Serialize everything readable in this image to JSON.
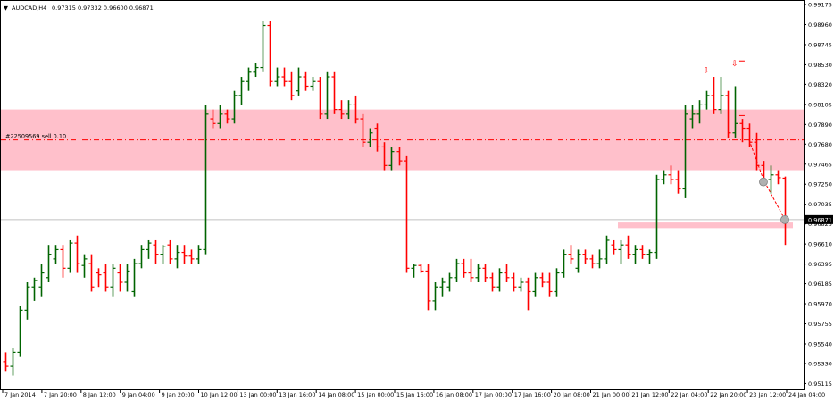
{
  "header": {
    "symbol": "AUDCAD,H4",
    "ohlc": "0.97315 0.97332 0.96600 0.96871"
  },
  "order_label": "#22509569 sell 0.10",
  "current_price_label": "0.96871",
  "colors": {
    "bull": "#006400",
    "bear": "#ff0000",
    "zone": "#ffc0cb",
    "order_line": "#ff0000",
    "price_line": "#c0c0c0",
    "price_tag_bg": "#000000"
  },
  "chart_data": {
    "type": "candlestick",
    "title": "AUDCAD,H4",
    "ylim": [
      0.951,
      0.99175
    ],
    "y_ticks": [
      "0.99175",
      "0.98960",
      "0.98745",
      "0.98530",
      "0.98320",
      "0.98105",
      "0.97890",
      "0.97680",
      "0.97465",
      "0.97250",
      "0.97035",
      "0.96825",
      "0.96610",
      "0.96395",
      "0.96185",
      "0.95970",
      "0.95755",
      "0.95540",
      "0.95330",
      "0.95115"
    ],
    "x_tick_labels": [
      "7 Jan 2014",
      "7 Jan 20:00",
      "8 Jan 12:00",
      "9 Jan 04:00",
      "9 Jan 20:00",
      "10 Jan 12:00",
      "13 Jan 00:00",
      "13 Jan 16:00",
      "14 Jan 08:00",
      "15 Jan 00:00",
      "15 Jan 16:00",
      "16 Jan 08:00",
      "17 Jan 00:00",
      "17 Jan 16:00",
      "20 Jan 08:00",
      "21 Jan 00:00",
      "21 Jan 12:00",
      "22 Jan 04:00",
      "22 Jan 20:00",
      "23 Jan 12:00",
      "24 Jan 04:00"
    ],
    "bars": [
      {
        "o": 0.9535,
        "h": 0.9545,
        "l": 0.9525,
        "c": 0.953
      },
      {
        "o": 0.953,
        "h": 0.955,
        "l": 0.952,
        "c": 0.9545
      },
      {
        "o": 0.9545,
        "h": 0.9595,
        "l": 0.954,
        "c": 0.959
      },
      {
        "o": 0.959,
        "h": 0.962,
        "l": 0.958,
        "c": 0.9615
      },
      {
        "o": 0.9615,
        "h": 0.9625,
        "l": 0.96,
        "c": 0.9622
      },
      {
        "o": 0.9615,
        "h": 0.964,
        "l": 0.9605,
        "c": 0.963
      },
      {
        "o": 0.9625,
        "h": 0.966,
        "l": 0.962,
        "c": 0.965
      },
      {
        "o": 0.9645,
        "h": 0.966,
        "l": 0.964,
        "c": 0.9655
      },
      {
        "o": 0.9655,
        "h": 0.966,
        "l": 0.9625,
        "c": 0.9635
      },
      {
        "o": 0.9635,
        "h": 0.9665,
        "l": 0.963,
        "c": 0.9662
      },
      {
        "o": 0.9662,
        "h": 0.967,
        "l": 0.963,
        "c": 0.964
      },
      {
        "o": 0.9638,
        "h": 0.965,
        "l": 0.9625,
        "c": 0.9645
      },
      {
        "o": 0.964,
        "h": 0.965,
        "l": 0.961,
        "c": 0.9615
      },
      {
        "o": 0.963,
        "h": 0.9635,
        "l": 0.9615,
        "c": 0.9628
      },
      {
        "o": 0.963,
        "h": 0.964,
        "l": 0.961,
        "c": 0.9615
      },
      {
        "o": 0.9615,
        "h": 0.964,
        "l": 0.9605,
        "c": 0.9635
      },
      {
        "o": 0.963,
        "h": 0.964,
        "l": 0.961,
        "c": 0.962
      },
      {
        "o": 0.962,
        "h": 0.964,
        "l": 0.961,
        "c": 0.9632
      },
      {
        "o": 0.961,
        "h": 0.9645,
        "l": 0.9605,
        "c": 0.964
      },
      {
        "o": 0.964,
        "h": 0.966,
        "l": 0.9635,
        "c": 0.9655
      },
      {
        "o": 0.9655,
        "h": 0.9665,
        "l": 0.9645,
        "c": 0.9662
      },
      {
        "o": 0.966,
        "h": 0.9665,
        "l": 0.964,
        "c": 0.965
      },
      {
        "o": 0.965,
        "h": 0.966,
        "l": 0.964,
        "c": 0.9658
      },
      {
        "o": 0.966,
        "h": 0.9665,
        "l": 0.964,
        "c": 0.9645
      },
      {
        "o": 0.9645,
        "h": 0.966,
        "l": 0.9635,
        "c": 0.9652
      },
      {
        "o": 0.9652,
        "h": 0.966,
        "l": 0.964,
        "c": 0.9648
      },
      {
        "o": 0.9648,
        "h": 0.9655,
        "l": 0.964,
        "c": 0.9645
      },
      {
        "o": 0.9645,
        "h": 0.966,
        "l": 0.964,
        "c": 0.9655
      },
      {
        "o": 0.9655,
        "h": 0.981,
        "l": 0.965,
        "c": 0.98
      },
      {
        "o": 0.9795,
        "h": 0.9805,
        "l": 0.9785,
        "c": 0.979
      },
      {
        "o": 0.979,
        "h": 0.981,
        "l": 0.9785,
        "c": 0.98
      },
      {
        "o": 0.98,
        "h": 0.9805,
        "l": 0.979,
        "c": 0.9795
      },
      {
        "o": 0.9795,
        "h": 0.9825,
        "l": 0.979,
        "c": 0.982
      },
      {
        "o": 0.982,
        "h": 0.984,
        "l": 0.981,
        "c": 0.9835
      },
      {
        "o": 0.9835,
        "h": 0.985,
        "l": 0.9825,
        "c": 0.9845
      },
      {
        "o": 0.9845,
        "h": 0.9855,
        "l": 0.984,
        "c": 0.985
      },
      {
        "o": 0.985,
        "h": 0.99,
        "l": 0.9845,
        "c": 0.9895
      },
      {
        "o": 0.9895,
        "h": 0.99,
        "l": 0.983,
        "c": 0.9835
      },
      {
        "o": 0.9835,
        "h": 0.985,
        "l": 0.983,
        "c": 0.984
      },
      {
        "o": 0.984,
        "h": 0.985,
        "l": 0.983,
        "c": 0.9835
      },
      {
        "o": 0.9835,
        "h": 0.9845,
        "l": 0.9815,
        "c": 0.982
      },
      {
        "o": 0.9825,
        "h": 0.985,
        "l": 0.982,
        "c": 0.984
      },
      {
        "o": 0.984,
        "h": 0.9845,
        "l": 0.9825,
        "c": 0.983
      },
      {
        "o": 0.983,
        "h": 0.984,
        "l": 0.9825,
        "c": 0.9835
      },
      {
        "o": 0.9835,
        "h": 0.984,
        "l": 0.9795,
        "c": 0.98
      },
      {
        "o": 0.98,
        "h": 0.9845,
        "l": 0.9795,
        "c": 0.984
      },
      {
        "o": 0.984,
        "h": 0.9845,
        "l": 0.98,
        "c": 0.9805
      },
      {
        "o": 0.9805,
        "h": 0.9815,
        "l": 0.9795,
        "c": 0.98
      },
      {
        "o": 0.98,
        "h": 0.9815,
        "l": 0.9795,
        "c": 0.981
      },
      {
        "o": 0.981,
        "h": 0.982,
        "l": 0.979,
        "c": 0.9795
      },
      {
        "o": 0.9795,
        "h": 0.98,
        "l": 0.9765,
        "c": 0.977
      },
      {
        "o": 0.977,
        "h": 0.9785,
        "l": 0.9765,
        "c": 0.978
      },
      {
        "o": 0.9785,
        "h": 0.979,
        "l": 0.976,
        "c": 0.9765
      },
      {
        "o": 0.9765,
        "h": 0.977,
        "l": 0.974,
        "c": 0.9745
      },
      {
        "o": 0.9745,
        "h": 0.9765,
        "l": 0.974,
        "c": 0.976
      },
      {
        "o": 0.976,
        "h": 0.9765,
        "l": 0.9745,
        "c": 0.975
      },
      {
        "o": 0.975,
        "h": 0.9755,
        "l": 0.963,
        "c": 0.9635
      },
      {
        "o": 0.9635,
        "h": 0.964,
        "l": 0.9625,
        "c": 0.9638
      },
      {
        "o": 0.9638,
        "h": 0.964,
        "l": 0.963,
        "c": 0.9632
      },
      {
        "o": 0.9632,
        "h": 0.964,
        "l": 0.959,
        "c": 0.96
      },
      {
        "o": 0.96,
        "h": 0.962,
        "l": 0.959,
        "c": 0.9615
      },
      {
        "o": 0.9615,
        "h": 0.9625,
        "l": 0.9605,
        "c": 0.962
      },
      {
        "o": 0.9615,
        "h": 0.963,
        "l": 0.961,
        "c": 0.9625
      },
      {
        "o": 0.9625,
        "h": 0.9645,
        "l": 0.962,
        "c": 0.964
      },
      {
        "o": 0.964,
        "h": 0.9645,
        "l": 0.9625,
        "c": 0.963
      },
      {
        "o": 0.963,
        "h": 0.9645,
        "l": 0.962,
        "c": 0.9625
      },
      {
        "o": 0.9625,
        "h": 0.964,
        "l": 0.962,
        "c": 0.9635
      },
      {
        "o": 0.9635,
        "h": 0.964,
        "l": 0.962,
        "c": 0.9625
      },
      {
        "o": 0.9625,
        "h": 0.963,
        "l": 0.961,
        "c": 0.9615
      },
      {
        "o": 0.9615,
        "h": 0.9635,
        "l": 0.961,
        "c": 0.963
      },
      {
        "o": 0.963,
        "h": 0.964,
        "l": 0.962,
        "c": 0.9625
      },
      {
        "o": 0.9625,
        "h": 0.963,
        "l": 0.961,
        "c": 0.9615
      },
      {
        "o": 0.9615,
        "h": 0.9625,
        "l": 0.961,
        "c": 0.962
      },
      {
        "o": 0.962,
        "h": 0.9625,
        "l": 0.959,
        "c": 0.961
      },
      {
        "o": 0.961,
        "h": 0.963,
        "l": 0.9605,
        "c": 0.9625
      },
      {
        "o": 0.9625,
        "h": 0.963,
        "l": 0.9615,
        "c": 0.962
      },
      {
        "o": 0.962,
        "h": 0.963,
        "l": 0.9605,
        "c": 0.961
      },
      {
        "o": 0.961,
        "h": 0.9635,
        "l": 0.9605,
        "c": 0.963
      },
      {
        "o": 0.963,
        "h": 0.9655,
        "l": 0.9625,
        "c": 0.965
      },
      {
        "o": 0.965,
        "h": 0.966,
        "l": 0.964,
        "c": 0.9645
      },
      {
        "o": 0.9635,
        "h": 0.9655,
        "l": 0.963,
        "c": 0.965
      },
      {
        "o": 0.965,
        "h": 0.9655,
        "l": 0.964,
        "c": 0.9645
      },
      {
        "o": 0.9645,
        "h": 0.965,
        "l": 0.9635,
        "c": 0.964
      },
      {
        "o": 0.964,
        "h": 0.9655,
        "l": 0.9635,
        "c": 0.9645
      },
      {
        "o": 0.9645,
        "h": 0.967,
        "l": 0.964,
        "c": 0.9665
      },
      {
        "o": 0.966,
        "h": 0.9665,
        "l": 0.965,
        "c": 0.9655
      },
      {
        "o": 0.9655,
        "h": 0.9665,
        "l": 0.964,
        "c": 0.966
      },
      {
        "o": 0.966,
        "h": 0.967,
        "l": 0.9645,
        "c": 0.965
      },
      {
        "o": 0.965,
        "h": 0.966,
        "l": 0.964,
        "c": 0.9655
      },
      {
        "o": 0.9655,
        "h": 0.966,
        "l": 0.9645,
        "c": 0.965
      },
      {
        "o": 0.965,
        "h": 0.9655,
        "l": 0.964,
        "c": 0.9652
      },
      {
        "o": 0.9652,
        "h": 0.9735,
        "l": 0.9645,
        "c": 0.973
      },
      {
        "o": 0.973,
        "h": 0.974,
        "l": 0.9725,
        "c": 0.9735
      },
      {
        "o": 0.9735,
        "h": 0.9745,
        "l": 0.9725,
        "c": 0.973
      },
      {
        "o": 0.973,
        "h": 0.974,
        "l": 0.9715,
        "c": 0.972
      },
      {
        "o": 0.972,
        "h": 0.981,
        "l": 0.971,
        "c": 0.98
      },
      {
        "o": 0.9795,
        "h": 0.981,
        "l": 0.9785,
        "c": 0.98
      },
      {
        "o": 0.98,
        "h": 0.9815,
        "l": 0.979,
        "c": 0.981
      },
      {
        "o": 0.981,
        "h": 0.9825,
        "l": 0.9805,
        "c": 0.982
      },
      {
        "o": 0.982,
        "h": 0.984,
        "l": 0.98,
        "c": 0.9805
      },
      {
        "o": 0.9805,
        "h": 0.984,
        "l": 0.98,
        "c": 0.982
      },
      {
        "o": 0.982,
        "h": 0.9825,
        "l": 0.9775,
        "c": 0.978
      },
      {
        "o": 0.978,
        "h": 0.983,
        "l": 0.9775,
        "c": 0.979
      },
      {
        "o": 0.979,
        "h": 0.9795,
        "l": 0.977,
        "c": 0.9785
      },
      {
        "o": 0.9785,
        "h": 0.979,
        "l": 0.9765,
        "c": 0.977
      },
      {
        "o": 0.977,
        "h": 0.978,
        "l": 0.974,
        "c": 0.9745
      },
      {
        "o": 0.9745,
        "h": 0.975,
        "l": 0.9725,
        "c": 0.973
      },
      {
        "o": 0.973,
        "h": 0.9745,
        "l": 0.9715,
        "c": 0.9735
      },
      {
        "o": 0.9735,
        "h": 0.974,
        "l": 0.9725,
        "c": 0.9732
      },
      {
        "o": 0.97315,
        "h": 0.97332,
        "l": 0.966,
        "c": 0.96871
      }
    ],
    "resistance_zone": {
      "from": 0.974,
      "to": 0.9805
    },
    "order_level": 0.97725,
    "current_price": 0.96871,
    "support_zone": {
      "from": 0.9678,
      "to": 0.9684
    }
  }
}
